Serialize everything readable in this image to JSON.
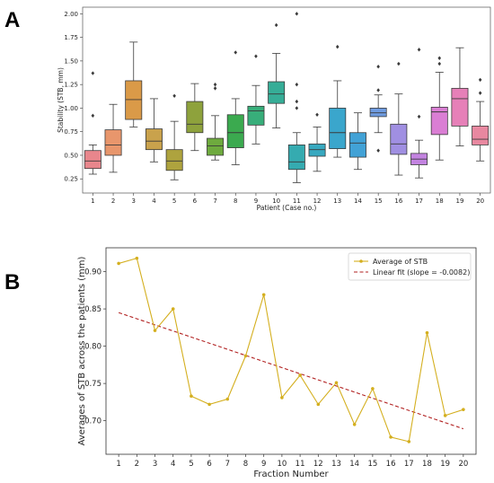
{
  "panels": {
    "a_letter": "A",
    "b_letter": "B"
  },
  "chart_data": [
    {
      "type": "box",
      "xlabel": "Patient (Case no.)",
      "ylabel": "Stability (STB, mm)",
      "ylim": [
        0.1,
        2.07
      ],
      "yticks": [
        "0.25",
        "0.50",
        "0.75",
        "1.00",
        "1.25",
        "1.50",
        "1.75",
        "2.00"
      ],
      "categories": [
        "1",
        "2",
        "3",
        "4",
        "5",
        "6",
        "7",
        "8",
        "9",
        "10",
        "11",
        "12",
        "13",
        "14",
        "15",
        "16",
        "17",
        "18",
        "19",
        "20"
      ],
      "boxes": [
        {
          "min": 0.3,
          "q1": 0.36,
          "median": 0.44,
          "q3": 0.55,
          "max": 0.61,
          "fliers": [
            0.92,
            1.37
          ],
          "color": "#E8868C"
        },
        {
          "min": 0.32,
          "q1": 0.5,
          "median": 0.61,
          "q3": 0.77,
          "max": 1.04,
          "fliers": [],
          "color": "#E8966C"
        },
        {
          "min": 0.8,
          "q1": 0.88,
          "median": 1.09,
          "q3": 1.29,
          "max": 1.7,
          "fliers": [],
          "color": "#DA9A48"
        },
        {
          "min": 0.43,
          "q1": 0.56,
          "median": 0.65,
          "q3": 0.78,
          "max": 1.1,
          "fliers": [],
          "color": "#C9A24C"
        },
        {
          "min": 0.24,
          "q1": 0.34,
          "median": 0.44,
          "q3": 0.56,
          "max": 0.86,
          "fliers": [
            1.13
          ],
          "color": "#AEA33E"
        },
        {
          "min": 0.55,
          "q1": 0.74,
          "median": 0.83,
          "q3": 1.07,
          "max": 1.26,
          "fliers": [],
          "color": "#8EA23C"
        },
        {
          "min": 0.45,
          "q1": 0.5,
          "median": 0.6,
          "q3": 0.68,
          "max": 0.92,
          "fliers": [
            1.21,
            1.25
          ],
          "color": "#6EAA3E"
        },
        {
          "min": 0.4,
          "q1": 0.58,
          "median": 0.74,
          "q3": 0.93,
          "max": 1.1,
          "fliers": [
            1.59
          ],
          "color": "#3BAA4F"
        },
        {
          "min": 0.62,
          "q1": 0.82,
          "median": 0.97,
          "q3": 1.02,
          "max": 1.24,
          "fliers": [
            1.55
          ],
          "color": "#38AE7A"
        },
        {
          "min": 0.79,
          "q1": 1.05,
          "median": 1.15,
          "q3": 1.28,
          "max": 1.58,
          "fliers": [
            1.88
          ],
          "color": "#36AD97"
        },
        {
          "min": 0.21,
          "q1": 0.35,
          "median": 0.43,
          "q3": 0.61,
          "max": 0.74,
          "fliers": [
            1.0,
            1.07,
            1.25,
            2.0
          ],
          "color": "#35ABB0"
        },
        {
          "min": 0.33,
          "q1": 0.49,
          "median": 0.56,
          "q3": 0.62,
          "max": 0.8,
          "fliers": [
            0.93
          ],
          "color": "#38A9C0"
        },
        {
          "min": 0.48,
          "q1": 0.57,
          "median": 0.74,
          "q3": 1.0,
          "max": 1.29,
          "fliers": [
            1.65
          ],
          "color": "#3AA6CC"
        },
        {
          "min": 0.35,
          "q1": 0.48,
          "median": 0.63,
          "q3": 0.74,
          "max": 0.95,
          "fliers": [],
          "color": "#42A2D6"
        },
        {
          "min": 0.74,
          "q1": 0.91,
          "median": 0.95,
          "q3": 1.0,
          "max": 1.14,
          "fliers": [
            0.55,
            1.19,
            1.44
          ],
          "color": "#6E9BE0"
        },
        {
          "min": 0.29,
          "q1": 0.51,
          "median": 0.62,
          "q3": 0.83,
          "max": 1.15,
          "fliers": [
            1.47
          ],
          "color": "#A08FE2"
        },
        {
          "min": 0.26,
          "q1": 0.4,
          "median": 0.46,
          "q3": 0.52,
          "max": 0.66,
          "fliers": [
            0.91,
            1.62
          ],
          "color": "#C383E0"
        },
        {
          "min": 0.45,
          "q1": 0.72,
          "median": 0.96,
          "q3": 1.01,
          "max": 1.38,
          "fliers": [
            1.47,
            1.53
          ],
          "color": "#DA7ED4"
        },
        {
          "min": 0.6,
          "q1": 0.81,
          "median": 1.1,
          "q3": 1.21,
          "max": 1.64,
          "fliers": [],
          "color": "#E680B8"
        },
        {
          "min": 0.44,
          "q1": 0.61,
          "median": 0.67,
          "q3": 0.81,
          "max": 1.07,
          "fliers": [
            1.16,
            1.3
          ],
          "color": "#E888A0"
        }
      ]
    },
    {
      "type": "line",
      "xlabel": "Fraction Number",
      "ylabel": "Averages of STB across the patients (mm)",
      "xlim": [
        0.3,
        20.7
      ],
      "ylim": [
        0.655,
        0.932
      ],
      "yticks": [
        "0.70",
        "0.75",
        "0.80",
        "0.85",
        "0.90"
      ],
      "x": [
        "1",
        "2",
        "3",
        "4",
        "5",
        "6",
        "7",
        "8",
        "9",
        "10",
        "11",
        "12",
        "13",
        "14",
        "15",
        "16",
        "17",
        "18",
        "19",
        "20"
      ],
      "series": [
        {
          "name": "Average of STB",
          "color": "#D4AF1F",
          "values": [
            0.911,
            0.918,
            0.821,
            0.85,
            0.733,
            0.722,
            0.729,
            0.787,
            0.869,
            0.731,
            0.761,
            0.722,
            0.751,
            0.695,
            0.743,
            0.678,
            0.672,
            0.818,
            0.707,
            0.715
          ]
        },
        {
          "name": "Linear fit (slope = -0.0082)",
          "color": "#B22222",
          "style": "dashed",
          "start": 0.845,
          "slope": -0.0082
        }
      ],
      "legend": "top-right"
    }
  ]
}
